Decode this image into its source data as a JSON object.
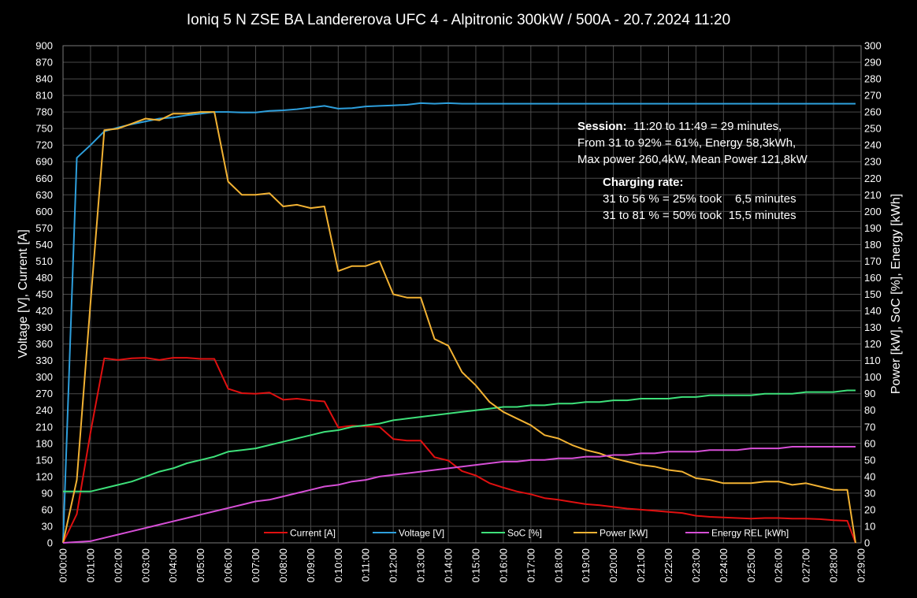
{
  "chart_data": {
    "type": "line",
    "title": "Ioniq 5 N  ZSE BA Landererova UFC 4 - Alpitronic 300kW / 500A - 20.7.2024  11:20",
    "ylabel_left": "Voltage [V], Current [A]",
    "ylabel_right": "Power [kW], SoC [%], Energy [kWh]",
    "y_left_range": [
      0,
      900
    ],
    "y_left_ticks": [
      "0",
      "30",
      "60",
      "90",
      "120",
      "150",
      "180",
      "210",
      "240",
      "270",
      "300",
      "330",
      "360",
      "390",
      "420",
      "450",
      "480",
      "510",
      "540",
      "570",
      "600",
      "630",
      "660",
      "690",
      "720",
      "750",
      "780",
      "810",
      "840",
      "870",
      "900"
    ],
    "y_right_range": [
      0,
      300
    ],
    "y_right_ticks": [
      "0",
      "10",
      "20",
      "30",
      "40",
      "50",
      "60",
      "70",
      "80",
      "90",
      "100",
      "110",
      "120",
      "130",
      "140",
      "150",
      "160",
      "170",
      "180",
      "190",
      "200",
      "210",
      "220",
      "230",
      "240",
      "250",
      "260",
      "270",
      "280",
      "290",
      "300"
    ],
    "x_range_minutes": [
      0,
      29
    ],
    "x_ticks": [
      "0:00:00",
      "0:01:00",
      "0:02:00",
      "0:03:00",
      "0:04:00",
      "0:05:00",
      "0:06:00",
      "0:07:00",
      "0:08:00",
      "0:09:00",
      "0:10:00",
      "0:11:00",
      "0:12:00",
      "0:13:00",
      "0:14:00",
      "0:15:00",
      "0:16:00",
      "0:17:00",
      "0:18:00",
      "0:19:00",
      "0:20:00",
      "0:21:00",
      "0:22:00",
      "0:23:00",
      "0:24:00",
      "0:25:00",
      "0:26:00",
      "0:27:00",
      "0:28:00",
      "0:29:00"
    ],
    "grid": true,
    "legend_position": "bottom-center",
    "annotations": {
      "session_label": "Session:",
      "session_line1": "11:20 to 11:49 = 29 minutes,",
      "session_line2": "From 31 to 92% = 61%, Energy 58,3kWh,",
      "session_line3": "Max power 260,4kW, Mean Power 121,8kW",
      "rate_label": "Charging rate:",
      "rate_line1": "31 to 56 % = 25% took    6,5 minutes",
      "rate_line2": "31 to 81 % = 50% took  15,5 minutes"
    },
    "series": [
      {
        "name": "Current [A]",
        "axis": "left",
        "color": "#e01010",
        "x": [
          0,
          0.5,
          1,
          1.5,
          2,
          2.5,
          3,
          3.5,
          4,
          4.5,
          5,
          5.5,
          6,
          6.5,
          7,
          7.5,
          8,
          8.5,
          9,
          9.5,
          10,
          10.5,
          11,
          11.5,
          12,
          12.5,
          13,
          13.5,
          14,
          14.5,
          15,
          15.5,
          16,
          16.5,
          17,
          17.5,
          18,
          18.5,
          19,
          19.5,
          20,
          20.5,
          21,
          21.5,
          22,
          22.5,
          23,
          23.5,
          24,
          24.5,
          25,
          25.5,
          26,
          26.5,
          27,
          27.5,
          28,
          28.5,
          28.8
        ],
        "values": [
          0,
          52,
          200,
          334,
          331,
          334,
          335,
          331,
          335,
          335,
          333,
          333,
          279,
          271,
          270,
          272,
          259,
          261,
          258,
          256,
          209,
          212,
          211,
          210,
          188,
          185,
          185,
          155,
          149,
          130,
          122,
          108,
          100,
          93,
          88,
          81,
          78,
          74,
          70,
          68,
          65,
          62,
          60,
          58,
          56,
          54,
          49,
          47,
          46,
          45,
          44,
          45,
          45,
          44,
          44,
          43,
          41,
          40,
          0
        ]
      },
      {
        "name": "Voltage [V]",
        "axis": "left",
        "color": "#2e9fdc",
        "x": [
          0,
          0.5,
          1,
          1.5,
          2,
          2.5,
          3,
          3.5,
          4,
          4.5,
          5,
          5.5,
          6,
          6.5,
          7,
          7.5,
          8,
          8.5,
          9,
          9.5,
          10,
          10.5,
          11,
          11.5,
          12,
          12.5,
          13,
          13.5,
          14,
          14.5,
          15,
          16,
          17,
          18,
          19,
          20,
          21,
          22,
          23,
          24,
          25,
          26,
          27,
          28,
          28.8
        ],
        "values": [
          0,
          697,
          720,
          745,
          752,
          758,
          763,
          768,
          770,
          774,
          777,
          780,
          780,
          779,
          779,
          782,
          783,
          785,
          788,
          791,
          786,
          787,
          790,
          791,
          792,
          793,
          796,
          795,
          796,
          795,
          795,
          795,
          795,
          795,
          795,
          795,
          795,
          795,
          795,
          795,
          795,
          795,
          795,
          795,
          795
        ]
      },
      {
        "name": "SoC [%]",
        "axis": "right",
        "color": "#3ee07a",
        "x": [
          0,
          1,
          1.5,
          2,
          2.5,
          3,
          3.5,
          4,
          4.5,
          5,
          5.5,
          6,
          6.5,
          7,
          7.5,
          8,
          8.5,
          9,
          9.5,
          10,
          10.5,
          11,
          11.5,
          12,
          12.5,
          13,
          13.5,
          14,
          14.5,
          15,
          15.5,
          16,
          16.5,
          17,
          17.5,
          18,
          18.5,
          19,
          19.5,
          20,
          20.5,
          21,
          21.5,
          22,
          22.5,
          23,
          23.5,
          24,
          24.5,
          25,
          25.5,
          26,
          26.5,
          27,
          27.5,
          28,
          28.5,
          28.8
        ],
        "values": [
          31,
          31,
          33,
          35,
          37,
          40,
          43,
          45,
          48,
          50,
          52,
          55,
          56,
          57,
          59,
          61,
          63,
          65,
          67,
          68,
          70,
          71,
          72,
          74,
          75,
          76,
          77,
          78,
          79,
          80,
          81,
          82,
          82,
          83,
          83,
          84,
          84,
          85,
          85,
          86,
          86,
          87,
          87,
          87,
          88,
          88,
          89,
          89,
          89,
          89,
          90,
          90,
          90,
          91,
          91,
          91,
          92,
          92
        ]
      },
      {
        "name": "Power [kW]",
        "axis": "right",
        "color": "#f2b233",
        "x": [
          0,
          0.5,
          1,
          1.5,
          2,
          2.5,
          3,
          3.5,
          4,
          4.5,
          5,
          5.5,
          6,
          6.5,
          7,
          7.5,
          8,
          8.5,
          9,
          9.5,
          10,
          10.5,
          11,
          11.5,
          12,
          12.5,
          13,
          13.5,
          14,
          14.5,
          15,
          15.5,
          16,
          16.5,
          17,
          17.5,
          18,
          18.5,
          19,
          19.5,
          20,
          20.5,
          21,
          21.5,
          22,
          22.5,
          23,
          23.5,
          24,
          24.5,
          25,
          25.5,
          26,
          26.5,
          27,
          27.5,
          28,
          28.5,
          28.8
        ],
        "values": [
          0,
          38,
          145,
          249,
          250,
          253,
          256,
          255,
          259,
          259,
          260,
          260,
          218,
          210,
          210,
          211,
          203,
          204,
          202,
          203,
          164,
          167,
          167,
          170,
          150,
          148,
          148,
          123,
          119,
          103,
          95,
          85,
          79,
          75,
          71,
          65,
          63,
          59,
          56,
          54,
          51,
          49,
          47,
          46,
          44,
          43,
          39,
          38,
          36,
          36,
          36,
          37,
          37,
          35,
          36,
          34,
          32,
          32,
          0
        ]
      },
      {
        "name": "Energy REL [kWh]",
        "axis": "right",
        "color": "#d64fd6",
        "x": [
          0,
          1,
          1.5,
          2,
          2.5,
          3,
          3.5,
          4,
          4.5,
          5,
          5.5,
          6,
          6.5,
          7,
          7.5,
          8,
          8.5,
          9,
          9.5,
          10,
          10.5,
          11,
          11.5,
          12,
          12.5,
          13,
          13.5,
          14,
          14.5,
          15,
          15.5,
          16,
          16.5,
          17,
          17.5,
          18,
          18.5,
          19,
          19.5,
          20,
          20.5,
          21,
          21.5,
          22,
          22.5,
          23,
          23.5,
          24,
          24.5,
          25,
          25.5,
          26,
          26.5,
          27,
          27.5,
          28,
          28.5,
          28.8
        ],
        "values": [
          0,
          1,
          3,
          5,
          7,
          9,
          11,
          13,
          15,
          17,
          19,
          21,
          23,
          25,
          26,
          28,
          30,
          32,
          34,
          35,
          37,
          38,
          40,
          41,
          42,
          43,
          44,
          45,
          46,
          47,
          48,
          49,
          49,
          50,
          50,
          51,
          51,
          52,
          52,
          53,
          53,
          54,
          54,
          55,
          55,
          55,
          56,
          56,
          56,
          57,
          57,
          57,
          58,
          58,
          58,
          58,
          58,
          58
        ]
      }
    ]
  }
}
